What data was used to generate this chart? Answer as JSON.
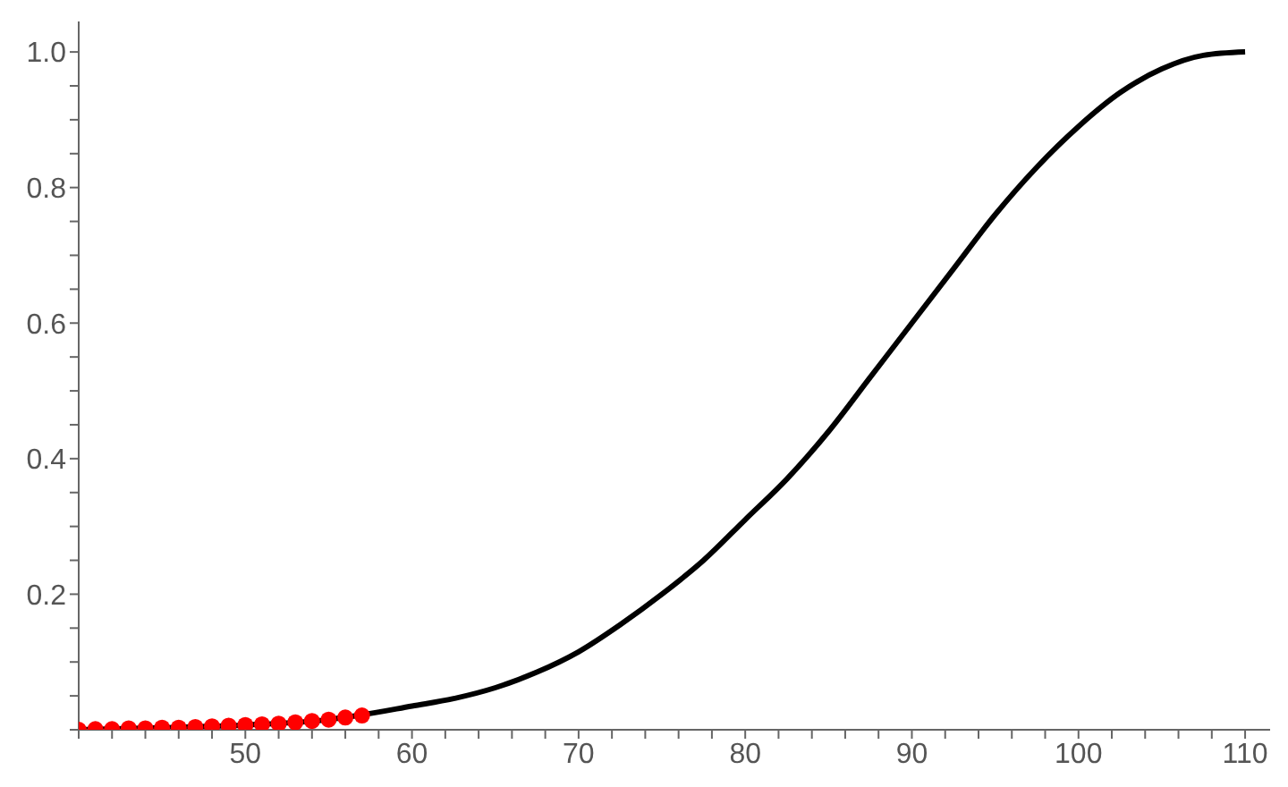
{
  "chart_data": {
    "type": "line",
    "xlim": [
      40,
      111.5
    ],
    "ylim": [
      0,
      1.045
    ],
    "xticks": [
      {
        "value": 40,
        "label": null
      },
      {
        "value": 42,
        "label": null
      },
      {
        "value": 44,
        "label": null
      },
      {
        "value": 46,
        "label": null
      },
      {
        "value": 48,
        "label": null
      },
      50,
      {
        "value": 52,
        "label": null
      },
      {
        "value": 54,
        "label": null
      },
      {
        "value": 56,
        "label": null
      },
      {
        "value": 58,
        "label": null
      },
      60,
      {
        "value": 62,
        "label": null
      },
      {
        "value": 64,
        "label": null
      },
      {
        "value": 66,
        "label": null
      },
      {
        "value": 68,
        "label": null
      },
      70,
      {
        "value": 72,
        "label": null
      },
      {
        "value": 74,
        "label": null
      },
      {
        "value": 76,
        "label": null
      },
      {
        "value": 78,
        "label": null
      },
      80,
      {
        "value": 82,
        "label": null
      },
      {
        "value": 84,
        "label": null
      },
      {
        "value": 86,
        "label": null
      },
      {
        "value": 88,
        "label": null
      },
      90,
      {
        "value": 92,
        "label": null
      },
      {
        "value": 94,
        "label": null
      },
      {
        "value": 96,
        "label": null
      },
      {
        "value": 98,
        "label": null
      },
      100,
      {
        "value": 102,
        "label": null
      },
      {
        "value": 104,
        "label": null
      },
      {
        "value": 106,
        "label": null
      },
      {
        "value": 108,
        "label": null
      },
      110
    ],
    "yticks": [
      {
        "value": 0,
        "label": null
      },
      {
        "value": 0.05,
        "label": null
      },
      {
        "value": 0.1,
        "label": null
      },
      {
        "value": 0.15,
        "label": null
      },
      0.2,
      {
        "value": 0.25,
        "label": null
      },
      {
        "value": 0.3,
        "label": null
      },
      {
        "value": 0.35,
        "label": null
      },
      0.4,
      {
        "value": 0.45,
        "label": null
      },
      {
        "value": 0.5,
        "label": null
      },
      {
        "value": 0.55,
        "label": null
      },
      0.6,
      {
        "value": 0.65,
        "label": null
      },
      {
        "value": 0.7,
        "label": null
      },
      {
        "value": 0.75,
        "label": null
      },
      0.8,
      {
        "value": 0.85,
        "label": null
      },
      {
        "value": 0.9,
        "label": null
      },
      {
        "value": 0.95,
        "label": null
      },
      {
        "value": 1.0,
        "label": "1.0"
      }
    ],
    "grid": false,
    "series": [
      {
        "color": "#000000",
        "marker": "none",
        "line_style": "solid",
        "x": [
          40,
          45,
          50,
          55,
          57,
          60,
          62.5,
          65,
          67.5,
          70,
          72.5,
          75,
          77.5,
          80,
          82.5,
          85,
          87.5,
          90,
          92.5,
          95,
          97.5,
          100,
          102.5,
          105,
          107.5,
          110
        ],
        "values": [
          0.0,
          0.003,
          0.007,
          0.015,
          0.022,
          0.035,
          0.046,
          0.062,
          0.085,
          0.115,
          0.155,
          0.2,
          0.25,
          0.31,
          0.37,
          0.44,
          0.52,
          0.6,
          0.68,
          0.76,
          0.83,
          0.89,
          0.94,
          0.975,
          0.995,
          1.0
        ]
      },
      {
        "type": "scatter",
        "color": "#ff0000",
        "marker": "circle",
        "x": [
          40,
          41,
          42,
          43,
          44,
          45,
          46,
          47,
          48,
          49,
          50,
          51,
          52,
          53,
          54,
          55,
          56,
          57
        ],
        "values": [
          0.0,
          0.001,
          0.001,
          0.002,
          0.002,
          0.003,
          0.003,
          0.004,
          0.005,
          0.006,
          0.007,
          0.008,
          0.009,
          0.011,
          0.013,
          0.015,
          0.018,
          0.021
        ]
      }
    ]
  }
}
